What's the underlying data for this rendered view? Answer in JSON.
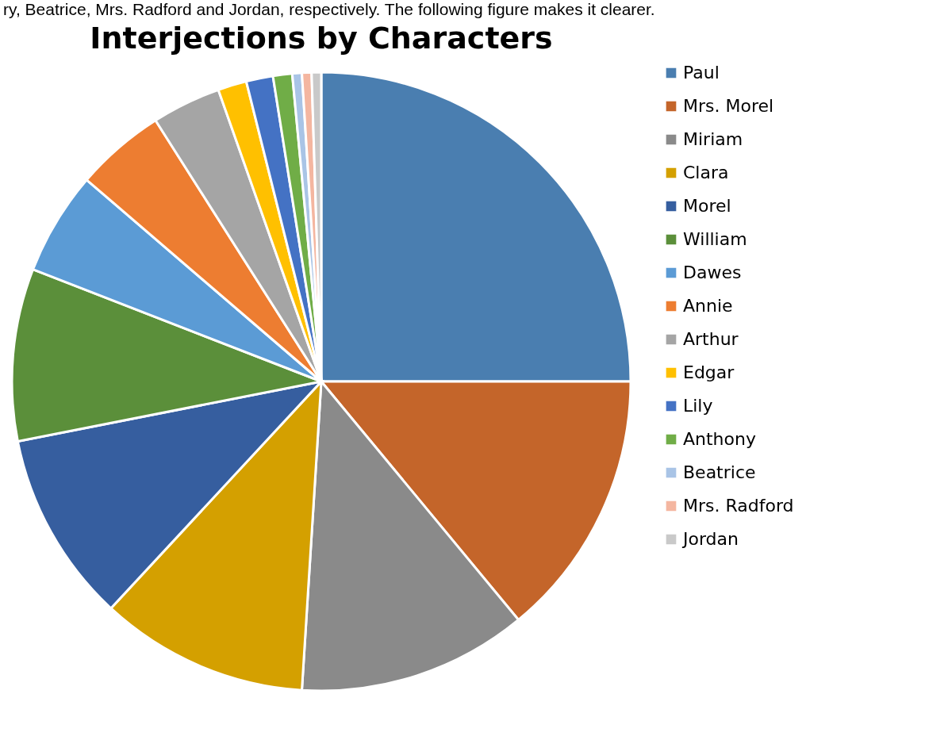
{
  "chart_data": {
    "type": "pie",
    "title": "Interjections by Characters",
    "annotations": [
      "ry, Beatrice, Mrs. Radford and Jordan, respectively. The following figure makes it clearer."
    ],
    "categories": [
      "Paul",
      "Mrs. Morel",
      "Miriam",
      "Clara",
      "Morel",
      "William",
      "Dawes",
      "Annie",
      "Arthur",
      "Edgar",
      "Lily",
      "Anthony",
      "Beatrice",
      "Mrs. Radford",
      "Jordan"
    ],
    "values": [
      25,
      14,
      12,
      10.9,
      10,
      9,
      5.4,
      4.7,
      3.6,
      1.5,
      1.4,
      1.0,
      0.5,
      0.5,
      0.5
    ],
    "colors": [
      "#4a7eb0",
      "#c4652a",
      "#8a8a8a",
      "#d4a000",
      "#365e9f",
      "#5b8f3a",
      "#5b9bd5",
      "#ed7d31",
      "#a5a5a5",
      "#ffc000",
      "#4472c4",
      "#70ad47",
      "#a9c4e6",
      "#f4b6a0",
      "#c9c9c9"
    ],
    "legend": "right"
  }
}
